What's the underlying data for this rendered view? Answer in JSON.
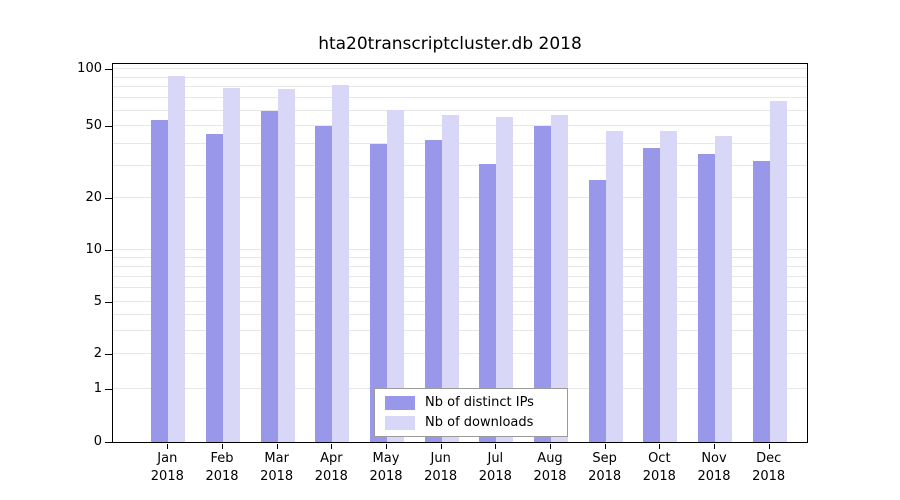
{
  "title": "hta20transcriptcluster.db 2018",
  "chart_data": {
    "type": "bar",
    "title": "hta20transcriptcluster.db 2018",
    "year_label": "2018",
    "months": [
      "Jan",
      "Feb",
      "Mar",
      "Apr",
      "May",
      "Jun",
      "Jul",
      "Aug",
      "Sep",
      "Oct",
      "Nov",
      "Dec"
    ],
    "categories": [
      "Jan 2018",
      "Feb 2018",
      "Mar 2018",
      "Apr 2018",
      "May 2018",
      "Jun 2018",
      "Jul 2018",
      "Aug 2018",
      "Sep 2018",
      "Oct 2018",
      "Nov 2018",
      "Dec 2018"
    ],
    "series": [
      {
        "name": "Nb of distinct IPs",
        "color": "#9897ea",
        "values": [
          54,
          45,
          60,
          50,
          40,
          42,
          31,
          50,
          25,
          38,
          35,
          32
        ]
      },
      {
        "name": "Nb of downloads",
        "color": "#d9d7f8",
        "values": [
          92,
          79,
          78,
          82,
          61,
          57,
          56,
          57,
          47,
          47,
          44,
          68
        ]
      }
    ],
    "yticks": [
      100,
      50,
      20,
      10,
      5,
      2,
      1,
      0
    ],
    "ylabel": "",
    "xlabel": "",
    "scale": "log-like",
    "grid": "horizontal",
    "legend_position": "bottom-center"
  }
}
